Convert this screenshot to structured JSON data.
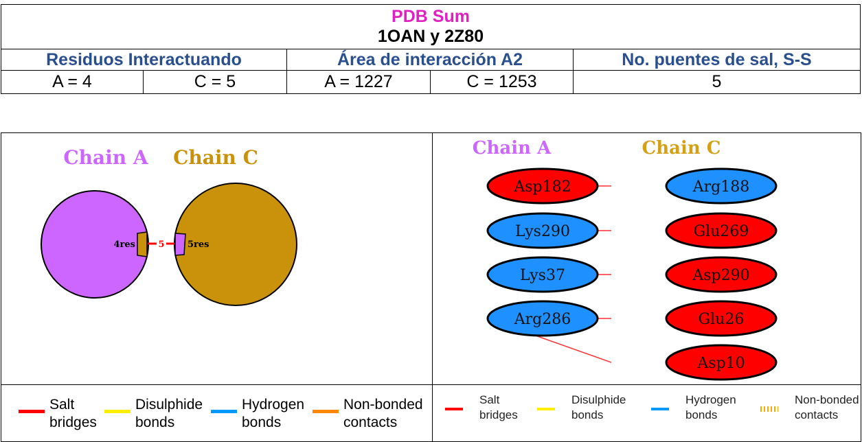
{
  "summary": {
    "title": "PDB Sum",
    "subtitle": "1OAN y 2Z80",
    "headers": [
      "Residuos Interactuando",
      "Área de interacción A2",
      "No. puentes de sal, S-S"
    ],
    "values": [
      "A = 4",
      "C = 5",
      "A = 1227",
      "C = 1253",
      "5"
    ]
  },
  "left_diagram": {
    "chain_a_label": "Chain A",
    "chain_c_label": "Chain C",
    "chain_a_res": "4res",
    "chain_c_res": "5res",
    "bond_count": "5",
    "colors": {
      "chain_a": "#cc66ff",
      "chain_c": "#c9920a",
      "bond": "#ff0000"
    }
  },
  "right_diagram": {
    "chain_a_label": "Chain A",
    "chain_c_label": "Chain C",
    "chain_a_residues": [
      {
        "name": "Asp182",
        "color": "#ff0000"
      },
      {
        "name": "Lys290",
        "color": "#1e90ff"
      },
      {
        "name": "Lys37",
        "color": "#1e90ff"
      },
      {
        "name": "Arg286",
        "color": "#1e90ff"
      }
    ],
    "chain_c_residues": [
      {
        "name": "Arg188",
        "color": "#1e90ff"
      },
      {
        "name": "Glu269",
        "color": "#ff0000"
      },
      {
        "name": "Asp290",
        "color": "#ff0000"
      },
      {
        "name": "Glu26",
        "color": "#ff0000"
      },
      {
        "name": "Asp10",
        "color": "#ff0000"
      }
    ],
    "bonds": [
      [
        0,
        0
      ],
      [
        1,
        1
      ],
      [
        2,
        2
      ],
      [
        3,
        3
      ],
      [
        3,
        4
      ]
    ],
    "colors": {
      "chain_a_label": "#cc66ff",
      "chain_c_label": "#d4a017",
      "bond": "#ff3030"
    }
  },
  "legend": {
    "items": [
      {
        "line1": "Salt",
        "line2": "bridges",
        "color": "#ff0000"
      },
      {
        "line1": "Disulphide",
        "line2": "bonds",
        "color": "#ffee00"
      },
      {
        "line1": "Hydrogen",
        "line2": "bonds",
        "color": "#0099ff"
      },
      {
        "line1": "Non-bonded",
        "line2": "contacts",
        "color": "#ff8800"
      }
    ],
    "right_nonbonded_color": "#ffa500"
  }
}
